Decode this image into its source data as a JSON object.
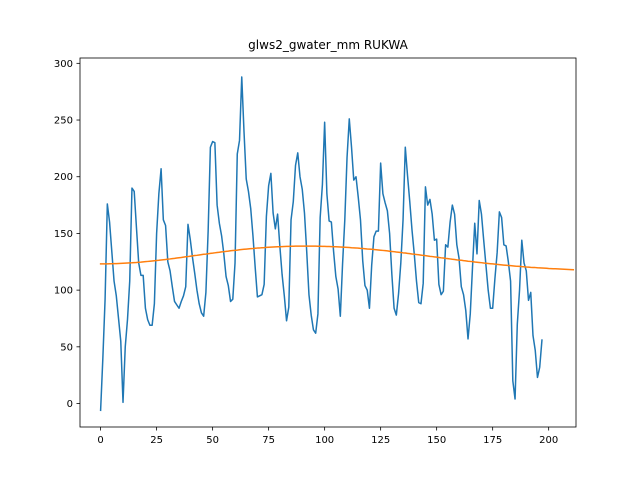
{
  "chart_data": {
    "type": "line",
    "title": "glws2_gwater_mm RUKWA",
    "xlabel": "",
    "ylabel": "",
    "xlim": [
      -9.2,
      212.2
    ],
    "ylim": [
      -20.7,
      304.7
    ],
    "x_ticks": [
      0,
      25,
      50,
      75,
      100,
      125,
      150,
      175,
      200
    ],
    "y_ticks": [
      0,
      50,
      100,
      150,
      200,
      250,
      300
    ],
    "grid": false,
    "legend": "none",
    "series": [
      {
        "color": "#1f77b4",
        "values": [
          -6,
          40,
          92,
          176,
          160,
          134,
          108,
          95,
          75,
          55,
          1,
          50,
          74,
          108,
          190,
          187,
          155,
          124,
          113,
          113,
          84,
          74,
          69,
          69,
          88,
          150,
          185,
          207,
          162,
          157,
          125,
          117,
          103,
          90,
          87,
          84,
          90,
          95,
          103,
          158,
          145,
          129,
          115,
          100,
          88,
          80,
          77,
          98,
          152,
          226,
          231,
          230,
          175,
          159,
          148,
          132,
          112,
          104,
          90,
          92,
          124,
          220,
          232,
          288,
          240,
          198,
          187,
          172,
          148,
          120,
          94,
          95,
          96,
          105,
          165,
          192,
          203,
          168,
          154,
          167,
          139,
          114,
          95,
          73,
          85,
          162,
          178,
          210,
          221,
          200,
          189,
          168,
          134,
          96,
          78,
          65,
          62,
          79,
          164,
          193,
          248,
          185,
          161,
          160,
          134,
          112,
          101,
          77,
          123,
          162,
          217,
          251,
          226,
          197,
          200,
          182,
          162,
          126,
          104,
          100,
          84,
          122,
          147,
          152,
          152,
          212,
          185,
          177,
          170,
          150,
          114,
          84,
          78,
          97,
          124,
          162,
          226,
          201,
          178,
          153,
          132,
          108,
          89,
          88,
          106,
          191,
          175,
          180,
          167,
          144,
          145,
          105,
          96,
          99,
          140,
          138,
          160,
          175,
          167,
          140,
          128,
          103,
          96,
          82,
          57,
          79,
          120,
          159,
          132,
          179,
          167,
          144,
          122,
          100,
          84,
          84,
          110,
          133,
          169,
          164,
          140,
          139,
          125,
          108,
          20,
          4,
          70,
          100,
          144,
          124,
          117,
          91,
          98,
          60,
          47,
          23,
          32,
          56
        ]
      },
      {
        "color": "#ff7f0e",
        "values": [
          123.2,
          123.2,
          123.2,
          123.2,
          123.3,
          123.3,
          123.4,
          123.4,
          123.5,
          123.6,
          123.7,
          123.8,
          123.9,
          124.0,
          124.1,
          124.3,
          124.4,
          124.6,
          124.7,
          124.9,
          125.1,
          125.3,
          125.5,
          125.7,
          125.9,
          126.1,
          126.3,
          126.6,
          126.8,
          127.0,
          127.3,
          127.5,
          127.8,
          128.0,
          128.3,
          128.6,
          128.8,
          129.1,
          129.4,
          129.6,
          129.9,
          130.2,
          130.5,
          130.7,
          131.0,
          131.3,
          131.6,
          131.8,
          132.1,
          132.4,
          132.6,
          132.9,
          133.2,
          133.4,
          133.7,
          133.9,
          134.2,
          134.4,
          134.7,
          134.9,
          135.1,
          135.3,
          135.6,
          135.8,
          136.0,
          136.2,
          136.4,
          136.6,
          136.7,
          136.9,
          137.1,
          137.2,
          137.4,
          137.5,
          137.7,
          137.8,
          137.9,
          138.0,
          138.1,
          138.2,
          138.3,
          138.4,
          138.5,
          138.6,
          138.6,
          138.7,
          138.7,
          138.8,
          138.8,
          138.8,
          138.8,
          138.8,
          138.8,
          138.8,
          138.8,
          138.8,
          138.8,
          138.7,
          138.7,
          138.6,
          138.6,
          138.5,
          138.5,
          138.4,
          138.3,
          138.2,
          138.1,
          138.0,
          137.9,
          137.8,
          137.7,
          137.6,
          137.4,
          137.3,
          137.2,
          137.0,
          136.8,
          136.7,
          136.5,
          136.3,
          136.2,
          136.0,
          135.8,
          135.6,
          135.4,
          135.2,
          135.0,
          134.8,
          134.6,
          134.3,
          134.1,
          133.9,
          133.6,
          133.4,
          133.2,
          132.9,
          132.7,
          132.4,
          132.2,
          131.9,
          131.7,
          131.4,
          131.2,
          130.9,
          130.6,
          130.4,
          130.1,
          129.8,
          129.6,
          129.3,
          129.1,
          128.8,
          128.5,
          128.3,
          128.0,
          127.8,
          127.5,
          127.2,
          127.0,
          126.7,
          126.5,
          126.3,
          126.0,
          125.8,
          125.5,
          125.3,
          125.1,
          124.8,
          124.6,
          124.4,
          124.2,
          123.9,
          123.7,
          123.5,
          123.3,
          123.1,
          122.9,
          122.7,
          122.5,
          122.3,
          122.1,
          121.9,
          121.7,
          121.6,
          121.4,
          121.2,
          121.0,
          120.9,
          120.7,
          120.6,
          120.4,
          120.3,
          120.1,
          120.0,
          119.9,
          119.7,
          119.6,
          119.5,
          119.4,
          119.3,
          119.1,
          119.0,
          118.9,
          118.8,
          118.7,
          118.6,
          118.5,
          118.4,
          118.3,
          118.2,
          118.1,
          118.0
        ]
      }
    ]
  }
}
